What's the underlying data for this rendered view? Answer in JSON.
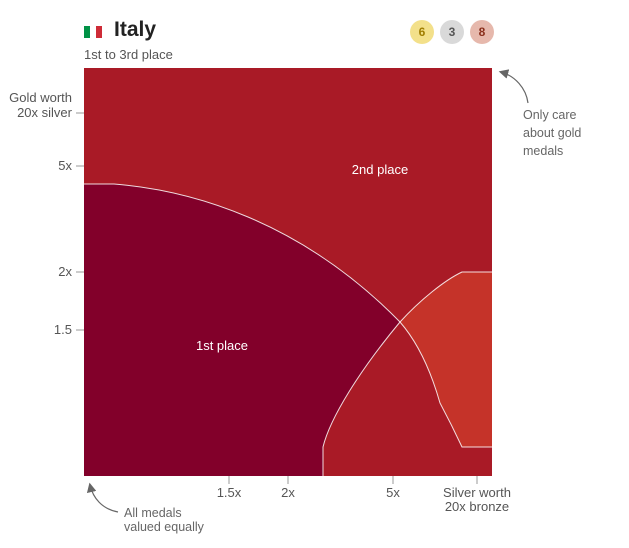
{
  "header": {
    "country": "Italy",
    "subtitle": "1st to 3rd place",
    "flag_colors": [
      "#009246",
      "#ffffff",
      "#ce2b37"
    ],
    "medals": {
      "gold": "6",
      "silver": "3",
      "bronze": "8"
    }
  },
  "chart_data": {
    "type": "heatmap",
    "title": "Italy",
    "subtitle": "1st to 3rd place",
    "x_axis": {
      "label": "",
      "ticks": [
        "1.5x",
        "2x",
        "5x"
      ],
      "end_label_lines": [
        "Silver worth",
        "20x bronze"
      ]
    },
    "y_axis": {
      "label": "",
      "ticks": [
        "1.5",
        "2x",
        "5x"
      ],
      "end_label_lines": [
        "Gold worth",
        "20x silver"
      ]
    },
    "regions": [
      {
        "name": "1st place",
        "label": "1st place",
        "color": "#82002a"
      },
      {
        "name": "2nd place",
        "label": "2nd place",
        "color": "#a91a26"
      },
      {
        "name": "3rd place",
        "label": "",
        "color": "#c53329"
      }
    ],
    "annotations": {
      "top_right": [
        "Only care",
        "about gold",
        "medals"
      ],
      "bottom_left": [
        "All medals",
        "valued equally"
      ]
    },
    "colors": {
      "arrow": "#666666",
      "boundary": "#ffffff"
    }
  }
}
